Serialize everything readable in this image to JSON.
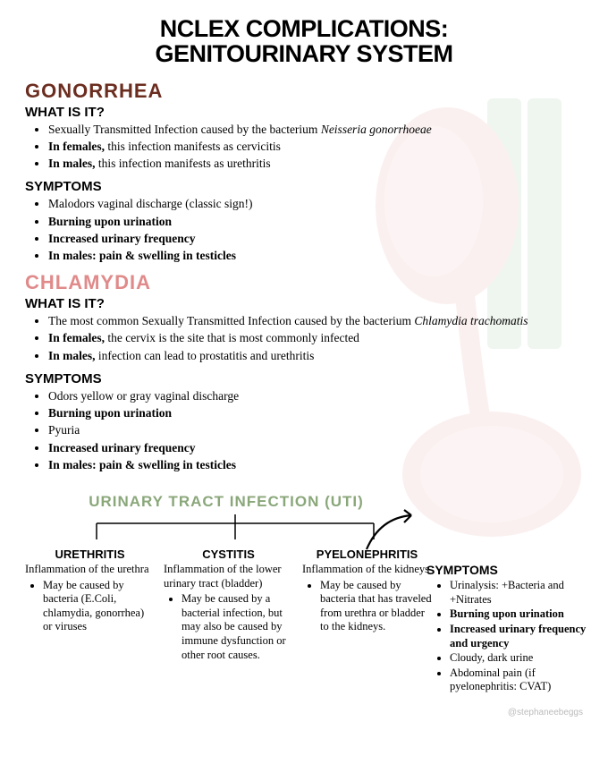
{
  "colors": {
    "title": "#000000",
    "gonorrhea": "#6b2d1f",
    "chlamydia": "#e08a8a",
    "uti": "#8aa77a",
    "kidney_fill": "#f0b8b8",
    "kidney_stroke": "#e8a0a0",
    "vessel": "#b8d0b8",
    "bladder": "#f5c5c5"
  },
  "title_line1": "NCLEX COMPLICATIONS:",
  "title_line2": "GENITOURINARY SYSTEM",
  "gonorrhea": {
    "heading": "GONORRHEA",
    "what_label": "WHAT IS IT?",
    "what_items": [
      {
        "html": "Sexually Transmitted Infection caused by the bacterium <span class='i'>Neisseria gonorrhoeae</span>"
      },
      {
        "html": "<span class='b'>In females,</span> this infection manifests as cervicitis"
      },
      {
        "html": "<span class='b'>In males,</span> this infection manifests as urethritis"
      }
    ],
    "symptoms_label": "SYMPTOMS",
    "symptoms_items": [
      {
        "text": "Malodors vaginal discharge (classic sign!)"
      },
      {
        "text": "Burning upon urination",
        "bold": true
      },
      {
        "text": "Increased urinary frequency",
        "bold": true
      },
      {
        "text": "In males: pain & swelling in testicles",
        "bold": true
      }
    ]
  },
  "chlamydia": {
    "heading": "CHLAMYDIA",
    "what_label": "WHAT IS IT?",
    "what_items": [
      {
        "html": "The most common Sexually Transmitted Infection caused by the bacterium <span class='i'>Chlamydia trachomatis</span>"
      },
      {
        "html": "<span class='b'>In females,</span> the cervix is the site that is most commonly infected"
      },
      {
        "html": "<span class='b'>In males,</span> infection can lead to prostatitis and urethritis"
      }
    ],
    "symptoms_label": "SYMPTOMS",
    "symptoms_items": [
      {
        "text": "Odors yellow or gray vaginal discharge"
      },
      {
        "text": "Burning upon urination",
        "bold": true
      },
      {
        "text": "Pyuria"
      },
      {
        "text": "Increased urinary frequency",
        "bold": true
      },
      {
        "text": "In males: pain & swelling in testicles",
        "bold": true
      }
    ]
  },
  "uti": {
    "heading": "URINARY TRACT INFECTION (UTI)",
    "cols": [
      {
        "title": "URETHRITIS",
        "desc": "Inflammation of the urethra",
        "items": [
          "May be caused by bacteria (E.Coli, chlamydia, gonorrhea) or viruses"
        ]
      },
      {
        "title": "CYSTITIS",
        "desc": "Inflammation of the lower urinary tract (bladder)",
        "items": [
          "May be caused by a bacterial infection, but may also be caused by immune dysfunction or other root causes."
        ]
      },
      {
        "title": "PYELONEPHRITIS",
        "desc": "Inflammation of the kidneys",
        "items": [
          "May be caused by bacteria that has traveled from urethra or bladder to the kidneys."
        ]
      }
    ]
  },
  "side_symptoms": {
    "label": "SYMPTOMS",
    "items": [
      {
        "text": "Urinalysis: +Bacteria and +Nitrates"
      },
      {
        "text": "Burning upon urination",
        "bold": true
      },
      {
        "text": "Increased urinary frequency and urgency",
        "bold": true
      },
      {
        "text": "Cloudy, dark urine"
      },
      {
        "text": "Abdominal pain (if pyelonephritis: CVAT)"
      }
    ]
  },
  "credit": "@stephaneebeggs"
}
